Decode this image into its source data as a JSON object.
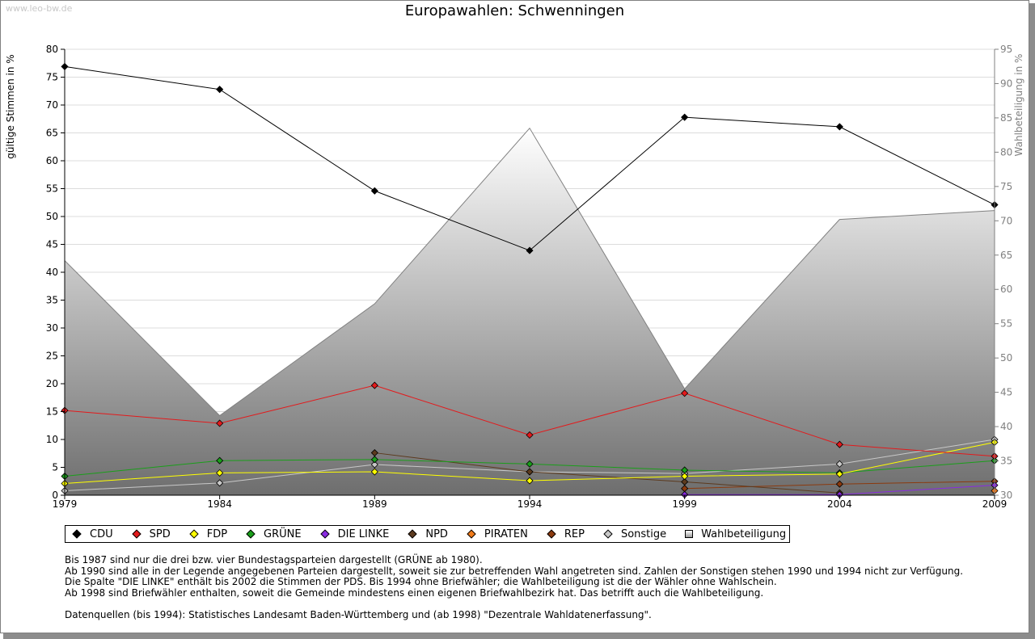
{
  "watermark": "www.leo-bw.de",
  "chart_data": {
    "type": "line",
    "title": "Europawahlen: Schwenningen",
    "ylabel": "gültige Stimmen in %",
    "y2label": "Wahlbeteiligung in %",
    "x": [
      "1979",
      "1984",
      "1989",
      "1994",
      "1999",
      "2004",
      "2009"
    ],
    "ylim": [
      0,
      80
    ],
    "yticks": [
      0,
      5,
      10,
      15,
      20,
      25,
      30,
      35,
      40,
      45,
      50,
      55,
      60,
      65,
      70,
      75,
      80
    ],
    "y2lim": [
      30,
      95
    ],
    "y2ticks": [
      30,
      35,
      40,
      45,
      50,
      55,
      60,
      65,
      70,
      75,
      80,
      85,
      90,
      95
    ],
    "grid": true,
    "area": {
      "name": "Wahlbeteiligung",
      "axis": "right",
      "values": [
        64.2,
        41.6,
        57.9,
        83.5,
        45.5,
        70.2,
        71.5
      ]
    },
    "series": [
      {
        "name": "CDU",
        "color": "#000000",
        "values": [
          76.9,
          72.8,
          54.6,
          43.9,
          67.8,
          66.1,
          52.1
        ]
      },
      {
        "name": "SPD",
        "color": "#e31a1c",
        "values": [
          15.2,
          12.9,
          19.7,
          10.8,
          18.3,
          9.1,
          7.0
        ]
      },
      {
        "name": "FDP",
        "color": "#ffff00",
        "values": [
          2.1,
          4.0,
          4.2,
          2.6,
          3.4,
          3.8,
          9.5
        ]
      },
      {
        "name": "GRÜNE",
        "color": "#1a9e1a",
        "values": [
          3.4,
          6.2,
          6.4,
          5.6,
          4.5,
          4.0,
          6.2
        ]
      },
      {
        "name": "DIE LINKE",
        "color": "#8a2be2",
        "values": [
          null,
          null,
          null,
          null,
          0.1,
          0.1,
          1.8
        ]
      },
      {
        "name": "NPD",
        "color": "#5c3a1e",
        "values": [
          null,
          null,
          7.6,
          4.2,
          2.4,
          0.4,
          null
        ]
      },
      {
        "name": "PIRATEN",
        "color": "#f07a1a",
        "values": [
          null,
          null,
          null,
          null,
          null,
          null,
          0.8
        ]
      },
      {
        "name": "REP",
        "color": "#8b3a0e",
        "values": [
          null,
          null,
          null,
          null,
          1.2,
          2.0,
          2.5
        ]
      },
      {
        "name": "Sonstige",
        "color": "#c8c8c8",
        "values": [
          0.8,
          2.2,
          5.5,
          4.2,
          3.9,
          5.6,
          10.0
        ]
      }
    ]
  },
  "legend": [
    {
      "label": "CDU",
      "color": "#000000",
      "kind": "diamond"
    },
    {
      "label": "SPD",
      "color": "#e31a1c",
      "kind": "diamond"
    },
    {
      "label": "FDP",
      "color": "#ffff00",
      "kind": "diamond"
    },
    {
      "label": "GRÜNE",
      "color": "#1a9e1a",
      "kind": "diamond"
    },
    {
      "label": "DIE LINKE",
      "color": "#8a2be2",
      "kind": "diamond"
    },
    {
      "label": "NPD",
      "color": "#5c3a1e",
      "kind": "diamond"
    },
    {
      "label": "PIRATEN",
      "color": "#f07a1a",
      "kind": "diamond"
    },
    {
      "label": "REP",
      "color": "#8b3a0e",
      "kind": "diamond"
    },
    {
      "label": "Sonstige",
      "color": "#c8c8c8",
      "kind": "diamond"
    },
    {
      "label": "Wahlbeteiligung",
      "color": "#b0b0b0",
      "kind": "square"
    }
  ],
  "notes": [
    "Bis 1987 sind nur die drei bzw. vier Bundestagsparteien dargestellt (GRÜNE ab 1980).",
    "Ab 1990 sind alle in der Legende angegebenen Parteien dargestellt, soweit sie zur betreffenden Wahl angetreten sind. Zahlen der Sonstigen stehen 1990 und 1994 nicht zur Verfügung.",
    "Die Spalte \"DIE LINKE\" enthält bis 2002 die Stimmen der PDS. Bis 1994 ohne Briefwähler; die Wahlbeteiligung ist die der Wähler ohne Wahlschein.",
    "Ab 1998 sind Briefwähler enthalten, soweit die Gemeinde mindestens einen eigenen Briefwahlbezirk hat. Das betrifft auch die Wahlbeteiligung."
  ],
  "source": "Datenquellen (bis 1994): Statistisches Landesamt Baden-Württemberg und (ab 1998) \"Dezentrale Wahldatenerfassung\"."
}
